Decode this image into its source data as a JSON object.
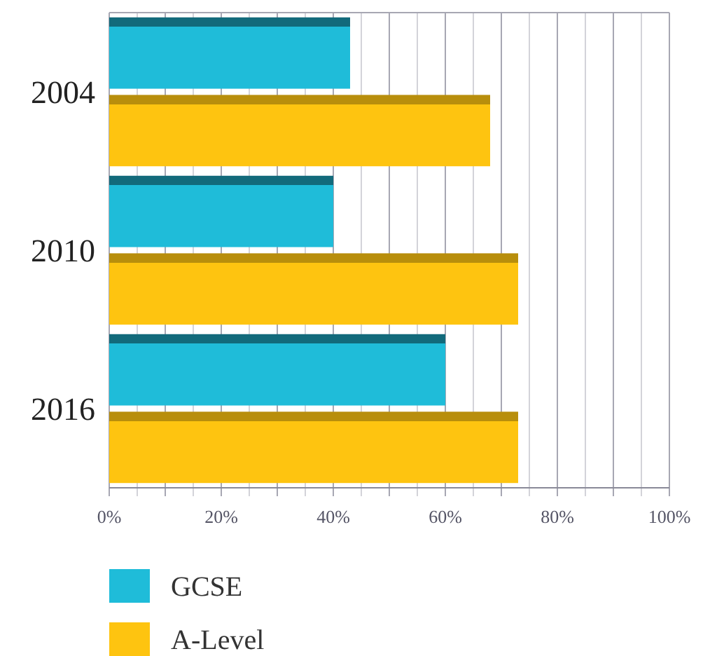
{
  "chart_data": {
    "type": "bar",
    "orientation": "horizontal",
    "categories": [
      "2004",
      "2010",
      "2016"
    ],
    "series": [
      {
        "name": "GCSE",
        "color": "#1fbcd9",
        "values": [
          43,
          40,
          60
        ]
      },
      {
        "name": "A-Level",
        "color": "#fec410",
        "values": [
          68,
          73,
          73
        ]
      }
    ],
    "xlim": [
      0,
      100
    ],
    "xticks": [
      {
        "value": 0,
        "label": "0%"
      },
      {
        "value": 5,
        "label": null
      },
      {
        "value": 10,
        "label": null
      },
      {
        "value": 15,
        "label": null
      },
      {
        "value": 20,
        "label": "20%"
      },
      {
        "value": 25,
        "label": null
      },
      {
        "value": 30,
        "label": null
      },
      {
        "value": 35,
        "label": null
      },
      {
        "value": 40,
        "label": "40%"
      },
      {
        "value": 45,
        "label": null
      },
      {
        "value": 50,
        "label": null
      },
      {
        "value": 55,
        "label": null
      },
      {
        "value": 60,
        "label": "60%"
      },
      {
        "value": 65,
        "label": null
      },
      {
        "value": 70,
        "label": null
      },
      {
        "value": 75,
        "label": null
      },
      {
        "value": 80,
        "label": "80%"
      },
      {
        "value": 85,
        "label": null
      },
      {
        "value": 90,
        "label": null
      },
      {
        "value": 95,
        "label": null
      },
      {
        "value": 100,
        "label": "100%"
      }
    ],
    "grid": "x",
    "legend": "bottom left"
  }
}
